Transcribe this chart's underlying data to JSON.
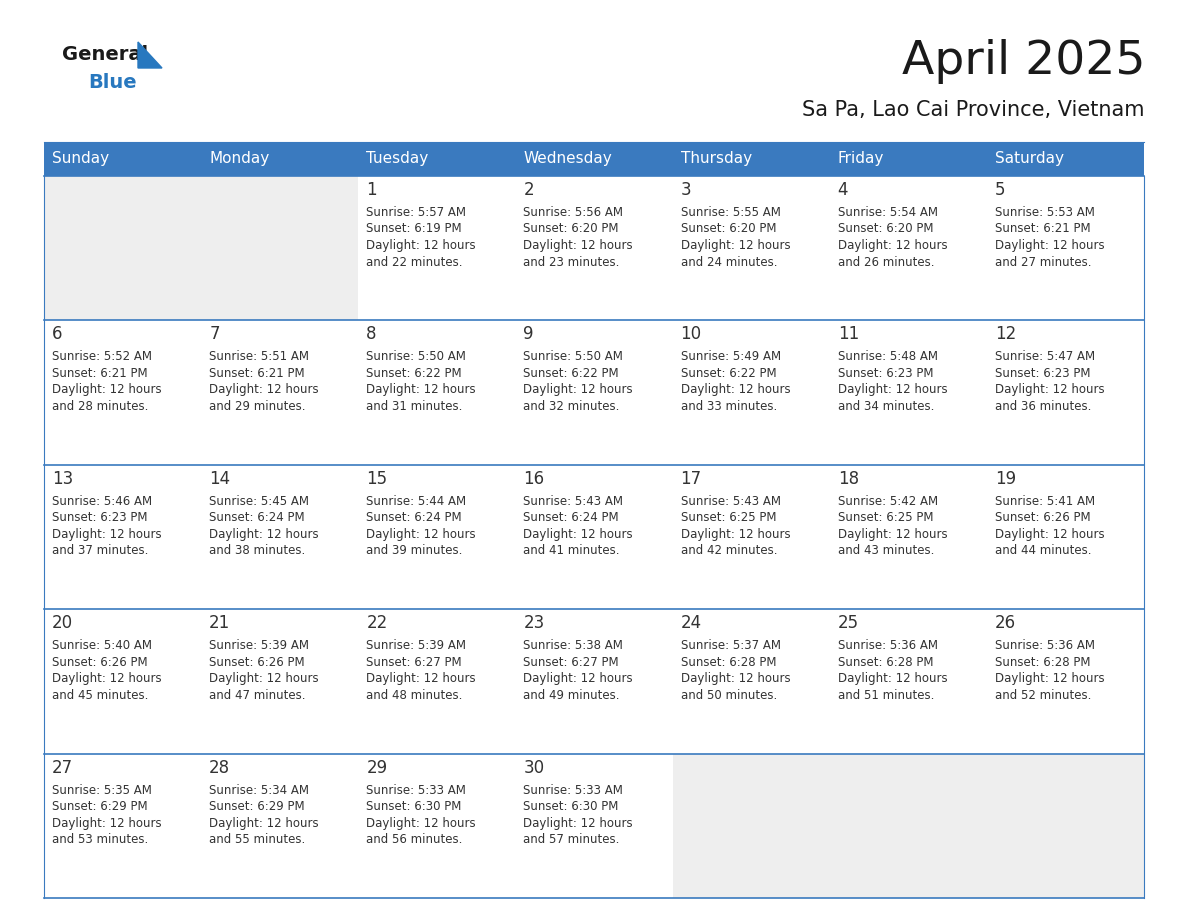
{
  "title": "April 2025",
  "subtitle": "Sa Pa, Lao Cai Province, Vietnam",
  "days_of_week": [
    "Sunday",
    "Monday",
    "Tuesday",
    "Wednesday",
    "Thursday",
    "Friday",
    "Saturday"
  ],
  "header_bg": "#3a7abf",
  "header_text_color": "#ffffff",
  "cell_bg_empty": "#eeeeee",
  "cell_bg_filled": "#ffffff",
  "border_color": "#3a7abf",
  "text_color": "#333333",
  "day_number_color": "#333333",
  "logo_general_color": "#1a1a1a",
  "logo_blue_color": "#2878bf",
  "title_color": "#1a1a1a",
  "subtitle_color": "#1a1a1a",
  "weeks": [
    [
      {
        "day": null,
        "sunrise": null,
        "sunset": null,
        "daylight": null
      },
      {
        "day": null,
        "sunrise": null,
        "sunset": null,
        "daylight": null
      },
      {
        "day": 1,
        "sunrise": "5:57 AM",
        "sunset": "6:19 PM",
        "daylight": "12 hours\nand 22 minutes."
      },
      {
        "day": 2,
        "sunrise": "5:56 AM",
        "sunset": "6:20 PM",
        "daylight": "12 hours\nand 23 minutes."
      },
      {
        "day": 3,
        "sunrise": "5:55 AM",
        "sunset": "6:20 PM",
        "daylight": "12 hours\nand 24 minutes."
      },
      {
        "day": 4,
        "sunrise": "5:54 AM",
        "sunset": "6:20 PM",
        "daylight": "12 hours\nand 26 minutes."
      },
      {
        "day": 5,
        "sunrise": "5:53 AM",
        "sunset": "6:21 PM",
        "daylight": "12 hours\nand 27 minutes."
      }
    ],
    [
      {
        "day": 6,
        "sunrise": "5:52 AM",
        "sunset": "6:21 PM",
        "daylight": "12 hours\nand 28 minutes."
      },
      {
        "day": 7,
        "sunrise": "5:51 AM",
        "sunset": "6:21 PM",
        "daylight": "12 hours\nand 29 minutes."
      },
      {
        "day": 8,
        "sunrise": "5:50 AM",
        "sunset": "6:22 PM",
        "daylight": "12 hours\nand 31 minutes."
      },
      {
        "day": 9,
        "sunrise": "5:50 AM",
        "sunset": "6:22 PM",
        "daylight": "12 hours\nand 32 minutes."
      },
      {
        "day": 10,
        "sunrise": "5:49 AM",
        "sunset": "6:22 PM",
        "daylight": "12 hours\nand 33 minutes."
      },
      {
        "day": 11,
        "sunrise": "5:48 AM",
        "sunset": "6:23 PM",
        "daylight": "12 hours\nand 34 minutes."
      },
      {
        "day": 12,
        "sunrise": "5:47 AM",
        "sunset": "6:23 PM",
        "daylight": "12 hours\nand 36 minutes."
      }
    ],
    [
      {
        "day": 13,
        "sunrise": "5:46 AM",
        "sunset": "6:23 PM",
        "daylight": "12 hours\nand 37 minutes."
      },
      {
        "day": 14,
        "sunrise": "5:45 AM",
        "sunset": "6:24 PM",
        "daylight": "12 hours\nand 38 minutes."
      },
      {
        "day": 15,
        "sunrise": "5:44 AM",
        "sunset": "6:24 PM",
        "daylight": "12 hours\nand 39 minutes."
      },
      {
        "day": 16,
        "sunrise": "5:43 AM",
        "sunset": "6:24 PM",
        "daylight": "12 hours\nand 41 minutes."
      },
      {
        "day": 17,
        "sunrise": "5:43 AM",
        "sunset": "6:25 PM",
        "daylight": "12 hours\nand 42 minutes."
      },
      {
        "day": 18,
        "sunrise": "5:42 AM",
        "sunset": "6:25 PM",
        "daylight": "12 hours\nand 43 minutes."
      },
      {
        "day": 19,
        "sunrise": "5:41 AM",
        "sunset": "6:26 PM",
        "daylight": "12 hours\nand 44 minutes."
      }
    ],
    [
      {
        "day": 20,
        "sunrise": "5:40 AM",
        "sunset": "6:26 PM",
        "daylight": "12 hours\nand 45 minutes."
      },
      {
        "day": 21,
        "sunrise": "5:39 AM",
        "sunset": "6:26 PM",
        "daylight": "12 hours\nand 47 minutes."
      },
      {
        "day": 22,
        "sunrise": "5:39 AM",
        "sunset": "6:27 PM",
        "daylight": "12 hours\nand 48 minutes."
      },
      {
        "day": 23,
        "sunrise": "5:38 AM",
        "sunset": "6:27 PM",
        "daylight": "12 hours\nand 49 minutes."
      },
      {
        "day": 24,
        "sunrise": "5:37 AM",
        "sunset": "6:28 PM",
        "daylight": "12 hours\nand 50 minutes."
      },
      {
        "day": 25,
        "sunrise": "5:36 AM",
        "sunset": "6:28 PM",
        "daylight": "12 hours\nand 51 minutes."
      },
      {
        "day": 26,
        "sunrise": "5:36 AM",
        "sunset": "6:28 PM",
        "daylight": "12 hours\nand 52 minutes."
      }
    ],
    [
      {
        "day": 27,
        "sunrise": "5:35 AM",
        "sunset": "6:29 PM",
        "daylight": "12 hours\nand 53 minutes."
      },
      {
        "day": 28,
        "sunrise": "5:34 AM",
        "sunset": "6:29 PM",
        "daylight": "12 hours\nand 55 minutes."
      },
      {
        "day": 29,
        "sunrise": "5:33 AM",
        "sunset": "6:30 PM",
        "daylight": "12 hours\nand 56 minutes."
      },
      {
        "day": 30,
        "sunrise": "5:33 AM",
        "sunset": "6:30 PM",
        "daylight": "12 hours\nand 57 minutes."
      },
      {
        "day": null,
        "sunrise": null,
        "sunset": null,
        "daylight": null
      },
      {
        "day": null,
        "sunrise": null,
        "sunset": null,
        "daylight": null
      },
      {
        "day": null,
        "sunrise": null,
        "sunset": null,
        "daylight": null
      }
    ]
  ]
}
